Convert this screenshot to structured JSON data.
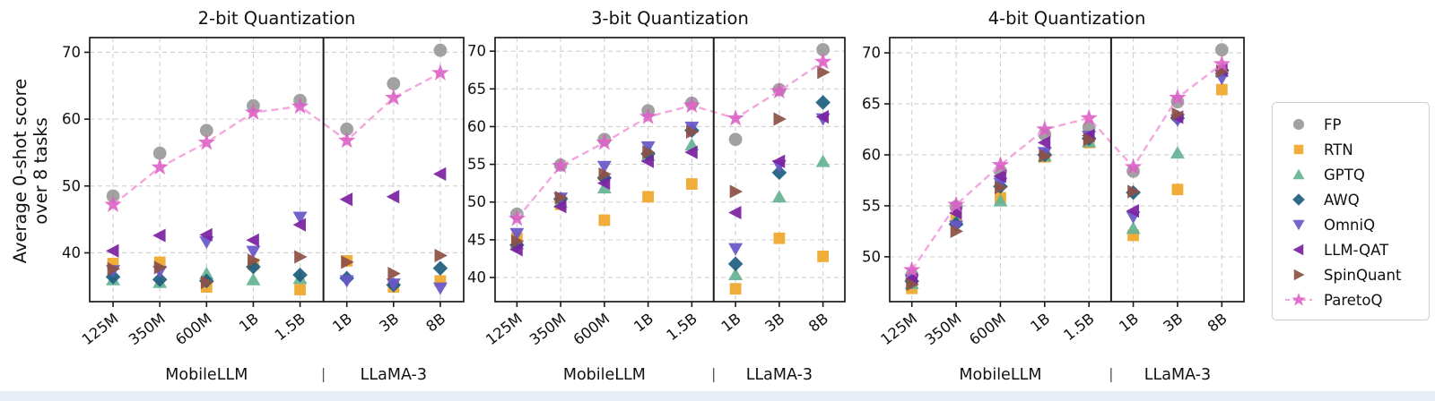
{
  "figure": {
    "ylabel": {
      "line1": "Average 0-shot score",
      "line2": "over 8 tasks"
    },
    "group_labels": {
      "left": "MobileLLM",
      "divider": "|",
      "right": "LLaMA-3"
    },
    "colors": {
      "axis": "#1a1a1a",
      "grid": "#cfcfcf",
      "text": "#111111",
      "bottom_strip": "#e7edf6",
      "pareto_line": "#f2a8de"
    }
  },
  "legend": {
    "items": [
      {
        "label": "FP",
        "marker": "circle",
        "color": "#9b9b9b"
      },
      {
        "label": "RTN",
        "marker": "square",
        "color": "#f0a72b"
      },
      {
        "label": "GPTQ",
        "marker": "triangle-up",
        "color": "#66b394"
      },
      {
        "label": "AWQ",
        "marker": "diamond",
        "color": "#1f5f80"
      },
      {
        "label": "OmniQ",
        "marker": "triangle-down",
        "color": "#6a57c8"
      },
      {
        "label": "LLM-QAT",
        "marker": "triangle-left",
        "color": "#7c21a1"
      },
      {
        "label": "SpinQuant",
        "marker": "triangle-right",
        "color": "#8c5246"
      },
      {
        "label": "ParetoQ",
        "marker": "star",
        "color": "#dc5ec6"
      }
    ]
  },
  "chart_data": [
    {
      "type": "scatter",
      "title": "2-bit Quantization",
      "categories": [
        "125M",
        "350M",
        "600M",
        "1B",
        "1.5B",
        "1B",
        "3B",
        "8B"
      ],
      "group_split": 5,
      "ylim": [
        32.7,
        72.2
      ],
      "yticks": [
        40,
        50,
        60,
        70
      ],
      "series": [
        {
          "name": "FP",
          "marker": "circle",
          "color": "#9b9b9b",
          "values": [
            48.5,
            54.9,
            58.3,
            62.0,
            62.8,
            58.5,
            65.3,
            70.3
          ]
        },
        {
          "name": "RTN",
          "marker": "square",
          "color": "#f0a72b",
          "values": [
            38.4,
            38.6,
            34.9,
            38.3,
            34.5,
            38.8,
            34.9,
            35.8
          ]
        },
        {
          "name": "GPTQ",
          "marker": "triangle-up",
          "color": "#66b394",
          "values": [
            36.0,
            35.6,
            36.9,
            36.0,
            36.2,
            null,
            null,
            null
          ]
        },
        {
          "name": "AWQ",
          "marker": "diamond",
          "color": "#1f5f80",
          "values": [
            36.4,
            36.0,
            35.8,
            37.9,
            36.7,
            36.2,
            35.2,
            37.7
          ]
        },
        {
          "name": "OmniQ",
          "marker": "triangle-down",
          "color": "#6a57c8",
          "values": [
            37.3,
            37.2,
            41.6,
            40.2,
            45.3,
            35.8,
            35.3,
            34.7
          ]
        },
        {
          "name": "LLM-QAT",
          "marker": "triangle-left",
          "color": "#7c21a1",
          "values": [
            40.3,
            42.6,
            42.7,
            41.9,
            44.2,
            48.0,
            48.4,
            51.8
          ]
        },
        {
          "name": "SpinQuant",
          "marker": "triangle-right",
          "color": "#8c5246",
          "values": [
            37.6,
            37.8,
            35.6,
            38.9,
            39.4,
            38.6,
            36.9,
            39.6
          ]
        },
        {
          "name": "ParetoQ",
          "marker": "star",
          "color": "#dc5ec6",
          "line": true,
          "values": [
            47.2,
            52.8,
            56.5,
            61.0,
            61.9,
            56.8,
            63.2,
            66.9
          ]
        }
      ]
    },
    {
      "type": "scatter",
      "title": "3-bit Quantization",
      "categories": [
        "125M",
        "350M",
        "600M",
        "1B",
        "1.5B",
        "1B",
        "3B",
        "8B"
      ],
      "group_split": 5,
      "ylim": [
        36.8,
        71.8
      ],
      "yticks": [
        40,
        45,
        50,
        55,
        60,
        65,
        70
      ],
      "series": [
        {
          "name": "FP",
          "marker": "circle",
          "color": "#9b9b9b",
          "values": [
            48.4,
            54.9,
            58.3,
            62.1,
            63.1,
            58.3,
            64.9,
            70.2
          ]
        },
        {
          "name": "RTN",
          "marker": "square",
          "color": "#f0a72b",
          "values": [
            45.2,
            49.7,
            47.6,
            50.7,
            52.4,
            38.5,
            45.2,
            42.8
          ]
        },
        {
          "name": "GPTQ",
          "marker": "triangle-up",
          "color": "#66b394",
          "values": [
            44.5,
            50.0,
            51.9,
            56.2,
            57.6,
            40.4,
            50.7,
            55.4
          ]
        },
        {
          "name": "AWQ",
          "marker": "diamond",
          "color": "#1f5f80",
          "values": [
            44.3,
            50.4,
            53.2,
            56.4,
            59.5,
            41.8,
            53.9,
            63.2
          ]
        },
        {
          "name": "OmniQ",
          "marker": "triangle-down",
          "color": "#6a57c8",
          "values": [
            45.8,
            50.5,
            54.7,
            57.3,
            59.9,
            43.8,
            54.8,
            61.0
          ]
        },
        {
          "name": "LLM-QAT",
          "marker": "triangle-left",
          "color": "#7c21a1",
          "values": [
            43.7,
            49.4,
            52.5,
            55.4,
            56.6,
            48.6,
            55.4,
            61.3
          ]
        },
        {
          "name": "SpinQuant",
          "marker": "triangle-right",
          "color": "#8c5246",
          "values": [
            44.8,
            50.6,
            53.7,
            56.6,
            59.3,
            51.4,
            61.0,
            67.2
          ]
        },
        {
          "name": "ParetoQ",
          "marker": "star",
          "color": "#dc5ec6",
          "line": true,
          "values": [
            47.8,
            54.8,
            57.9,
            61.3,
            62.8,
            61.1,
            64.7,
            68.6
          ]
        }
      ]
    },
    {
      "type": "scatter",
      "title": "4-bit Quantization",
      "categories": [
        "125M",
        "350M",
        "600M",
        "1B",
        "1.5B",
        "1B",
        "3B",
        "8B"
      ],
      "group_split": 5,
      "ylim": [
        45.6,
        71.5
      ],
      "yticks": [
        50,
        55,
        60,
        65,
        70
      ],
      "series": [
        {
          "name": "FP",
          "marker": "circle",
          "color": "#9b9b9b",
          "values": [
            48.2,
            54.9,
            58.4,
            62.0,
            62.7,
            58.4,
            65.2,
            70.3
          ]
        },
        {
          "name": "RTN",
          "marker": "square",
          "color": "#f0a72b",
          "values": [
            46.9,
            53.8,
            55.8,
            59.8,
            61.2,
            52.1,
            56.6,
            66.4
          ]
        },
        {
          "name": "GPTQ",
          "marker": "triangle-up",
          "color": "#66b394",
          "values": [
            47.4,
            53.6,
            55.5,
            59.9,
            61.3,
            52.8,
            60.2,
            68.2
          ]
        },
        {
          "name": "AWQ",
          "marker": "diamond",
          "color": "#1f5f80",
          "values": [
            47.6,
            53.2,
            56.9,
            60.0,
            61.6,
            56.3,
            63.6,
            68.3
          ]
        },
        {
          "name": "OmniQ",
          "marker": "triangle-down",
          "color": "#6a57c8",
          "values": [
            47.7,
            53.0,
            57.2,
            60.2,
            61.8,
            53.9,
            63.4,
            67.5
          ]
        },
        {
          "name": "LLM-QAT",
          "marker": "triangle-left",
          "color": "#7c21a1",
          "values": [
            47.8,
            54.3,
            57.9,
            61.2,
            61.9,
            54.5,
            63.7,
            68.3
          ]
        },
        {
          "name": "SpinQuant",
          "marker": "triangle-right",
          "color": "#8c5246",
          "values": [
            47.3,
            52.5,
            56.8,
            59.9,
            61.5,
            56.4,
            64.0,
            68.2
          ]
        },
        {
          "name": "ParetoQ",
          "marker": "star",
          "color": "#dc5ec6",
          "line": true,
          "values": [
            48.7,
            55.1,
            59.0,
            62.5,
            63.6,
            58.8,
            65.6,
            68.9
          ]
        }
      ]
    }
  ]
}
